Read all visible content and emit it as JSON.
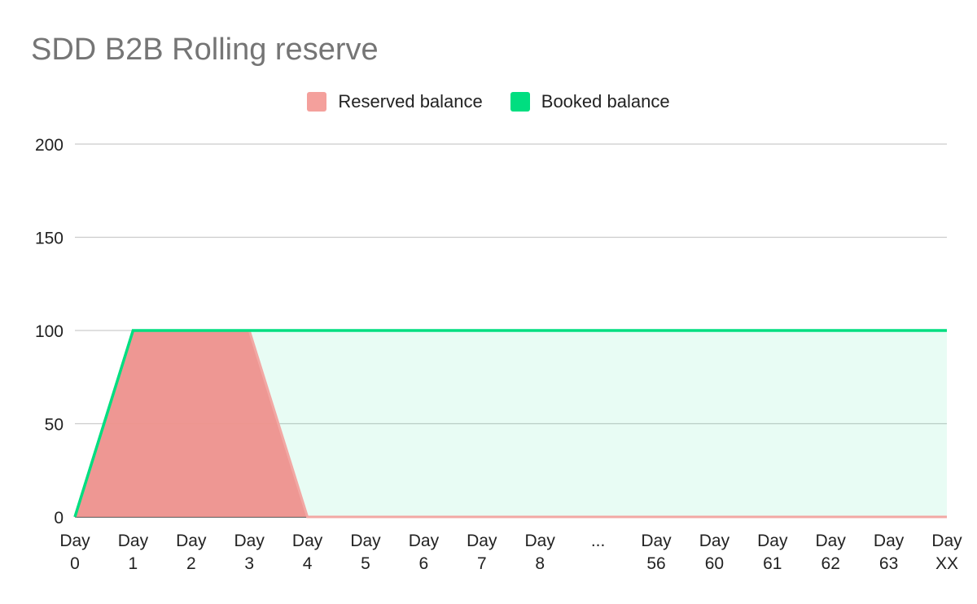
{
  "chart_data": {
    "type": "area",
    "title": "SDD B2B Rolling reserve",
    "xlabel": "",
    "ylabel": "",
    "ylim": [
      0,
      200
    ],
    "yticks": [
      "0",
      "50",
      "100",
      "150",
      "200"
    ],
    "grid": true,
    "legend_position": "top-center",
    "categories": [
      [
        "Day",
        "0"
      ],
      [
        "Day",
        "1"
      ],
      [
        "Day",
        "2"
      ],
      [
        "Day",
        "3"
      ],
      [
        "Day",
        "4"
      ],
      [
        "Day",
        "5"
      ],
      [
        "Day",
        "6"
      ],
      [
        "Day",
        "7"
      ],
      [
        "Day",
        "8"
      ],
      [
        "..."
      ],
      [
        "Day",
        "56"
      ],
      [
        "Day",
        "60"
      ],
      [
        "Day",
        "61"
      ],
      [
        "Day",
        "62"
      ],
      [
        "Day",
        "63"
      ],
      [
        "Day",
        "XX"
      ]
    ],
    "series": [
      {
        "name": "Reserved balance",
        "color": "#ee918d",
        "values": [
          0,
          100,
          100,
          100,
          0,
          0,
          0,
          0,
          0,
          0,
          0,
          0,
          0,
          0,
          0,
          0
        ]
      },
      {
        "name": "Booked balance",
        "color": "#00de80",
        "values": [
          0,
          100,
          100,
          100,
          100,
          100,
          100,
          100,
          100,
          100,
          100,
          100,
          100,
          100,
          100,
          100
        ]
      }
    ]
  }
}
